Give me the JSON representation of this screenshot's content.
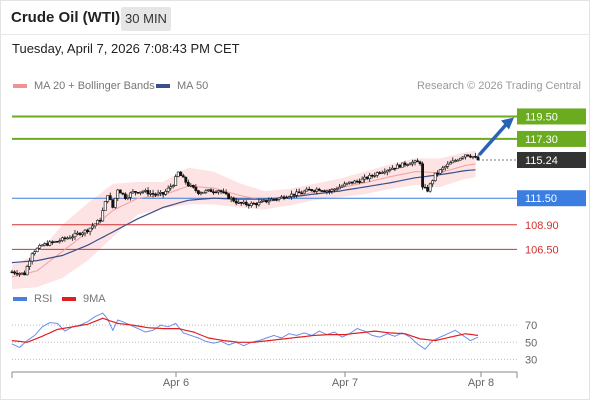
{
  "header": {
    "title": "Crude Oil (WTI)",
    "timeframe": "30 MIN",
    "timestamp": "Tuesday, April 7, 2026 7:08:43 PM CET"
  },
  "legend": {
    "ma20_label": "MA 20 + Bollinger Bands",
    "ma50_label": "MA 50",
    "credit": "Research © 2026 Trading Central"
  },
  "rsi_legend": {
    "rsi_label": "RSI",
    "ma_label": "9MA"
  },
  "colors": {
    "resistance_green": "#6aab1f",
    "current_price_bg": "#333333",
    "pivot_blue": "#3b7de0",
    "support_red": "#d23030",
    "bollinger_fill": "#fde3e3",
    "ma20_line": "#f2a0a0",
    "ma50_line": "#3a4f8c",
    "rsi_line": "#6a8ee8",
    "rsi_ma_line": "#e02020",
    "arrow": "#2a63b5"
  },
  "chart_data": [
    {
      "type": "candlestick",
      "ylim": [
        103.5,
        121.5
      ],
      "x_ticks": [
        "Apr 6",
        "Apr 7",
        "Apr 8"
      ],
      "current_price": "115.24",
      "levels": [
        {
          "label": "119.50",
          "value": 119.5,
          "kind": "resistance"
        },
        {
          "label": "117.30",
          "value": 117.3,
          "kind": "resistance"
        },
        {
          "label": "111.50",
          "value": 111.5,
          "kind": "pivot"
        },
        {
          "label": "108.90",
          "value": 108.9,
          "kind": "support"
        },
        {
          "label": "106.50",
          "value": 106.5,
          "kind": "support"
        }
      ],
      "close_path": [
        [
          0,
          104.3
        ],
        [
          5,
          104.1
        ],
        [
          8,
          106.2
        ],
        [
          12,
          106.9
        ],
        [
          18,
          107.3
        ],
        [
          24,
          107.8
        ],
        [
          30,
          108.4
        ],
        [
          35,
          109.4
        ],
        [
          38,
          111.9
        ],
        [
          40,
          110.6
        ],
        [
          42,
          112.4
        ],
        [
          45,
          111.6
        ],
        [
          48,
          112.1
        ],
        [
          52,
          112.2
        ],
        [
          56,
          111.9
        ],
        [
          60,
          111.9
        ],
        [
          64,
          112.9
        ],
        [
          66,
          114.0
        ],
        [
          70,
          112.8
        ],
        [
          74,
          112.1
        ],
        [
          78,
          112.2
        ],
        [
          82,
          112.3
        ],
        [
          86,
          111.6
        ],
        [
          90,
          111.0
        ],
        [
          94,
          110.9
        ],
        [
          98,
          111.0
        ],
        [
          102,
          111.3
        ],
        [
          106,
          111.5
        ],
        [
          110,
          111.8
        ],
        [
          114,
          112.0
        ],
        [
          118,
          112.3
        ],
        [
          122,
          112.4
        ],
        [
          126,
          112.2
        ],
        [
          130,
          112.6
        ],
        [
          134,
          113.0
        ],
        [
          138,
          113.2
        ],
        [
          142,
          113.6
        ],
        [
          146,
          114.1
        ],
        [
          150,
          114.4
        ],
        [
          154,
          114.7
        ],
        [
          158,
          115.0
        ],
        [
          162,
          115.0
        ],
        [
          163,
          112.5
        ],
        [
          165,
          112.3
        ],
        [
          168,
          113.8
        ],
        [
          172,
          114.6
        ],
        [
          176,
          115.2
        ],
        [
          180,
          115.8
        ],
        [
          183,
          115.6
        ],
        [
          185,
          115.24
        ]
      ],
      "ma20": [
        [
          0,
          103.8
        ],
        [
          10,
          104.4
        ],
        [
          20,
          106.3
        ],
        [
          30,
          108.2
        ],
        [
          40,
          110.3
        ],
        [
          50,
          111.5
        ],
        [
          60,
          111.8
        ],
        [
          70,
          112.7
        ],
        [
          80,
          112.5
        ],
        [
          90,
          111.8
        ],
        [
          100,
          111.3
        ],
        [
          110,
          111.6
        ],
        [
          120,
          112.1
        ],
        [
          130,
          112.5
        ],
        [
          140,
          113.0
        ],
        [
          150,
          113.6
        ],
        [
          160,
          114.1
        ],
        [
          170,
          114.0
        ],
        [
          180,
          114.7
        ],
        [
          185,
          114.9
        ]
      ],
      "ma50": [
        [
          0,
          105.2
        ],
        [
          10,
          105.4
        ],
        [
          20,
          105.9
        ],
        [
          30,
          106.9
        ],
        [
          40,
          108.2
        ],
        [
          50,
          109.5
        ],
        [
          60,
          110.6
        ],
        [
          70,
          111.3
        ],
        [
          80,
          111.5
        ],
        [
          90,
          111.4
        ],
        [
          100,
          111.4
        ],
        [
          110,
          111.6
        ],
        [
          120,
          111.9
        ],
        [
          130,
          112.2
        ],
        [
          140,
          112.6
        ],
        [
          150,
          113.0
        ],
        [
          160,
          113.5
        ],
        [
          170,
          113.8
        ],
        [
          180,
          114.2
        ],
        [
          185,
          114.3
        ]
      ],
      "bb_width": [
        [
          0,
          1.2
        ],
        [
          10,
          1.6
        ],
        [
          20,
          2.6
        ],
        [
          30,
          2.8
        ],
        [
          40,
          2.6
        ],
        [
          50,
          1.6
        ],
        [
          60,
          1.3
        ],
        [
          70,
          1.8
        ],
        [
          80,
          1.6
        ],
        [
          90,
          1.2
        ],
        [
          100,
          0.9
        ],
        [
          110,
          0.8
        ],
        [
          120,
          0.8
        ],
        [
          130,
          0.9
        ],
        [
          140,
          1.1
        ],
        [
          150,
          1.2
        ],
        [
          160,
          1.3
        ],
        [
          170,
          1.4
        ],
        [
          180,
          1.3
        ],
        [
          185,
          1.3
        ]
      ],
      "arrow_target": 119.5
    },
    {
      "type": "line",
      "series": [
        {
          "name": "RSI",
          "values": []
        },
        {
          "name": "9MA",
          "values": []
        }
      ],
      "ylim": [
        20,
        90
      ],
      "y_ticks": [
        "70",
        "50",
        "30"
      ],
      "guide_levels": [
        70,
        50,
        30
      ],
      "rsi": [
        [
          0,
          48
        ],
        [
          3,
          44
        ],
        [
          6,
          52
        ],
        [
          9,
          58
        ],
        [
          12,
          68
        ],
        [
          15,
          73
        ],
        [
          18,
          72
        ],
        [
          21,
          63
        ],
        [
          24,
          68
        ],
        [
          27,
          70
        ],
        [
          30,
          74
        ],
        [
          33,
          80
        ],
        [
          36,
          84
        ],
        [
          38,
          77
        ],
        [
          40,
          64
        ],
        [
          42,
          76
        ],
        [
          44,
          74
        ],
        [
          47,
          70
        ],
        [
          50,
          66
        ],
        [
          53,
          62
        ],
        [
          56,
          64
        ],
        [
          59,
          70
        ],
        [
          62,
          68
        ],
        [
          65,
          72
        ],
        [
          68,
          61
        ],
        [
          71,
          58
        ],
        [
          74,
          55
        ],
        [
          77,
          51
        ],
        [
          80,
          49
        ],
        [
          83,
          51
        ],
        [
          86,
          47
        ],
        [
          89,
          50
        ],
        [
          92,
          46
        ],
        [
          95,
          50
        ],
        [
          98,
          52
        ],
        [
          101,
          55
        ],
        [
          104,
          58
        ],
        [
          107,
          55
        ],
        [
          110,
          60
        ],
        [
          113,
          58
        ],
        [
          116,
          61
        ],
        [
          119,
          58
        ],
        [
          122,
          63
        ],
        [
          125,
          59
        ],
        [
          128,
          62
        ],
        [
          131,
          56
        ],
        [
          134,
          60
        ],
        [
          137,
          66
        ],
        [
          140,
          63
        ],
        [
          143,
          58
        ],
        [
          146,
          56
        ],
        [
          149,
          60
        ],
        [
          152,
          57
        ],
        [
          155,
          61
        ],
        [
          158,
          56
        ],
        [
          161,
          48
        ],
        [
          164,
          42
        ],
        [
          167,
          52
        ],
        [
          170,
          56
        ],
        [
          173,
          60
        ],
        [
          176,
          64
        ],
        [
          179,
          58
        ],
        [
          182,
          52
        ],
        [
          185,
          56
        ]
      ],
      "rsi_ma": [
        [
          0,
          52
        ],
        [
          6,
          50
        ],
        [
          12,
          57
        ],
        [
          18,
          65
        ],
        [
          24,
          68
        ],
        [
          30,
          71
        ],
        [
          36,
          78
        ],
        [
          42,
          72
        ],
        [
          48,
          70
        ],
        [
          54,
          67
        ],
        [
          60,
          66
        ],
        [
          66,
          66
        ],
        [
          72,
          62
        ],
        [
          78,
          55
        ],
        [
          84,
          52
        ],
        [
          90,
          50
        ],
        [
          96,
          50
        ],
        [
          102,
          52
        ],
        [
          108,
          54
        ],
        [
          114,
          56
        ],
        [
          120,
          58
        ],
        [
          126,
          59
        ],
        [
          132,
          59
        ],
        [
          138,
          61
        ],
        [
          144,
          63
        ],
        [
          150,
          61
        ],
        [
          156,
          60
        ],
        [
          162,
          54
        ],
        [
          168,
          52
        ],
        [
          174,
          56
        ],
        [
          180,
          60
        ],
        [
          185,
          58
        ]
      ]
    }
  ]
}
